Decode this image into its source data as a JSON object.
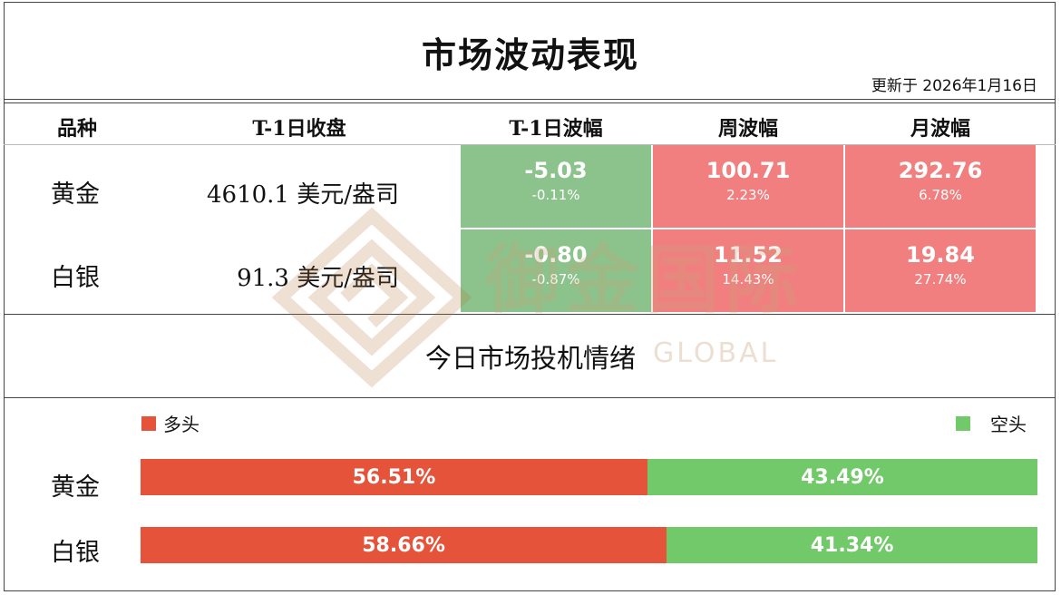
{
  "title": "市场波动表现",
  "updated": "更新于  2026年1月16日",
  "headers": {
    "variety": "品种",
    "close": "T-1日收盘",
    "day": "T-1日波幅",
    "week": "周波幅",
    "month": "月波幅"
  },
  "rows": [
    {
      "name": "黄金",
      "close": "4610.1  美元/盎司",
      "day": {
        "value": "-5.03",
        "pct": "-0.11%",
        "color": "#8cc38c"
      },
      "week": {
        "value": "100.71",
        "pct": "2.23%",
        "color": "#f17f7f"
      },
      "month": {
        "value": "292.76",
        "pct": "6.78%",
        "color": "#f17f7f"
      }
    },
    {
      "name": "白银",
      "close": "91.3  美元/盎司",
      "day": {
        "value": "-0.80",
        "pct": "-0.87%",
        "color": "#8cc38c"
      },
      "week": {
        "value": "11.52",
        "pct": "14.43%",
        "color": "#f17f7f"
      },
      "month": {
        "value": "19.84",
        "pct": "27.74%",
        "color": "#f17f7f"
      }
    }
  ],
  "sentiment": {
    "title": "今日市场投机情绪",
    "legend": {
      "long": "多头",
      "short": "空头"
    },
    "colors": {
      "long": "#e5533a",
      "short": "#72c96a"
    },
    "items": [
      {
        "name": "黄金",
        "long": 56.51,
        "short": 43.49,
        "long_label": "56.51%",
        "short_label": "43.49%"
      },
      {
        "name": "白银",
        "long": 58.66,
        "short": 41.34,
        "long_label": "58.66%",
        "short_label": "41.34%"
      }
    ]
  },
  "watermark": {
    "text": "御金国际",
    "sub": "GLOBAL"
  }
}
